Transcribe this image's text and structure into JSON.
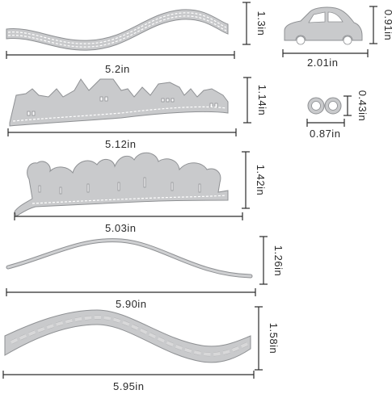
{
  "dies": [
    {
      "name": "wave-strip",
      "width": "5.2in",
      "height": "1.3in"
    },
    {
      "name": "car",
      "width": "2.01in",
      "height": "0.91in"
    },
    {
      "name": "village-strip",
      "width": "5.12in",
      "height": "1.14in"
    },
    {
      "name": "rings",
      "width": "0.87in",
      "height": "0.43in"
    },
    {
      "name": "tree-strip",
      "width": "5.03in",
      "height": "1.42in"
    },
    {
      "name": "thin-wave",
      "width": "5.90in",
      "height": "1.26in"
    },
    {
      "name": "road-curve",
      "width": "5.95in",
      "height": "1.58in"
    }
  ]
}
